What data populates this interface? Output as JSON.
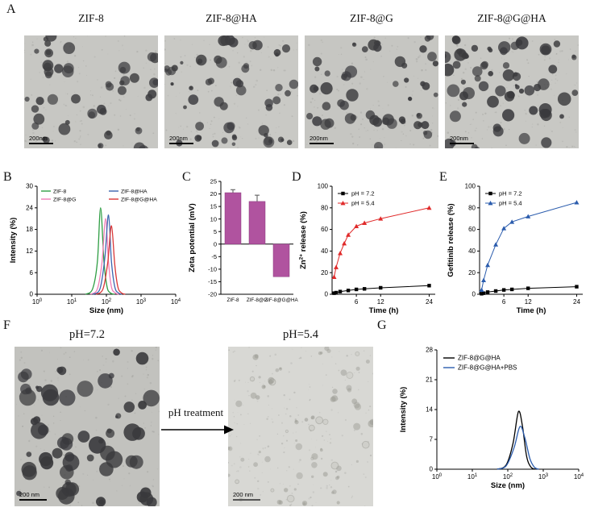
{
  "panels": {
    "A": {
      "label": "A",
      "images": [
        {
          "title": "ZIF-8",
          "scalebar": "200nm"
        },
        {
          "title": "ZIF-8@HA",
          "scalebar": "200nm"
        },
        {
          "title": "ZIF-8@G",
          "scalebar": "200nm"
        },
        {
          "title": "ZIF-8@G@HA",
          "scalebar": "200nm"
        }
      ]
    },
    "B": {
      "label": "B"
    },
    "C": {
      "label": "C"
    },
    "D": {
      "label": "D"
    },
    "E": {
      "label": "E"
    },
    "F": {
      "label": "F",
      "left_title": "pH=7.2",
      "right_title": "pH=5.4",
      "arrow_label": "pH treatment",
      "left_scalebar": "200 nm",
      "right_scalebar": "200 nm"
    },
    "G": {
      "label": "G"
    }
  },
  "chart_data": [
    {
      "id": "B",
      "type": "line",
      "xscale": "log",
      "title": "",
      "xlabel": "Size (nm)",
      "ylabel": "Intensity (%)",
      "xlim": [
        1,
        10000
      ],
      "ylim": [
        0,
        30
      ],
      "xticks": [
        1,
        10,
        100,
        1000,
        10000
      ],
      "yticks": [
        0,
        6,
        12,
        18,
        24,
        30
      ],
      "legend_position": "top-inside-two-columns",
      "series": [
        {
          "name": "ZIF-8",
          "color": "#2f9e44",
          "x": [
            25,
            40,
            55,
            68,
            85,
            105,
            130,
            170
          ],
          "y": [
            0,
            1.5,
            9,
            24,
            9,
            2,
            0.4,
            0
          ]
        },
        {
          "name": "ZIF-8@G",
          "color": "#ef7cb5",
          "x": [
            35,
            55,
            75,
            95,
            115,
            140,
            180,
            230
          ],
          "y": [
            0,
            1.5,
            9,
            21,
            9,
            2,
            0.4,
            0
          ]
        },
        {
          "name": "ZIF-8@HA",
          "color": "#3c64ae",
          "x": [
            40,
            65,
            90,
            115,
            140,
            175,
            220,
            280
          ],
          "y": [
            0,
            1.5,
            10,
            22,
            9,
            2,
            0.4,
            0
          ]
        },
        {
          "name": "ZIF-8@G@HA",
          "color": "#d93636",
          "x": [
            50,
            80,
            110,
            140,
            175,
            215,
            270,
            350
          ],
          "y": [
            0,
            1.5,
            9,
            19,
            8,
            2,
            0.4,
            0
          ]
        }
      ]
    },
    {
      "id": "C",
      "type": "bar",
      "ylabel": "Zeta potential (mV)",
      "ylim": [
        -20,
        25
      ],
      "yticks": [
        -20,
        -15,
        -10,
        -5,
        0,
        5,
        10,
        15,
        20,
        25
      ],
      "bar_color": "#b0539f",
      "categories": [
        "ZIF-8",
        "ZIF-8@G",
        "ZIF-8@G@HA"
      ],
      "values": [
        20.5,
        17,
        -13
      ],
      "errors": [
        1.2,
        2.5,
        0
      ]
    },
    {
      "id": "D",
      "type": "line",
      "xlabel": "Time (h)",
      "ylabel": "Zn2+ release (%)",
      "ylabel_parts": [
        [
          "Zn",
          false
        ],
        [
          "2+",
          true
        ],
        [
          " release (%)",
          false
        ]
      ],
      "xlim": [
        0,
        25.5
      ],
      "ylim": [
        0,
        100
      ],
      "xticks": [
        6,
        12,
        24
      ],
      "yticks": [
        0,
        20,
        40,
        60,
        80,
        100
      ],
      "legend_position": "top-left-inside",
      "series": [
        {
          "name": "pH = 7.2",
          "color": "#000000",
          "marker": "square",
          "x": [
            0.5,
            1,
            2,
            4,
            6,
            8,
            12,
            24
          ],
          "y": [
            1,
            1.5,
            2.5,
            3.5,
            4.5,
            5,
            6,
            8
          ]
        },
        {
          "name": "pH = 5.4",
          "color": "#e02a2a",
          "marker": "triangle",
          "x": [
            0.5,
            1,
            2,
            3,
            4,
            6,
            8,
            12,
            24
          ],
          "y": [
            16,
            25,
            38,
            47,
            55,
            63,
            66,
            70,
            80
          ]
        }
      ]
    },
    {
      "id": "E",
      "type": "line",
      "xlabel": "Time (h)",
      "ylabel": "Gefitinib release (%)",
      "xlim": [
        0,
        25.5
      ],
      "ylim": [
        0,
        100
      ],
      "xticks": [
        6,
        12,
        24
      ],
      "yticks": [
        0,
        20,
        40,
        60,
        80,
        100
      ],
      "legend_position": "top-left-inside",
      "series": [
        {
          "name": "pH = 7.2",
          "color": "#000000",
          "marker": "square",
          "x": [
            0.5,
            1,
            2,
            4,
            6,
            8,
            12,
            24
          ],
          "y": [
            0.5,
            1,
            2,
            3,
            4,
            4.5,
            5.5,
            7
          ]
        },
        {
          "name": "pH = 5.4",
          "color": "#2b5cad",
          "marker": "triangle",
          "x": [
            0.5,
            1,
            2,
            4,
            6,
            8,
            12,
            24
          ],
          "y": [
            4,
            13,
            27,
            46,
            61,
            67,
            72,
            85
          ]
        }
      ]
    },
    {
      "id": "G",
      "type": "line",
      "xscale": "log",
      "xlabel": "Size (nm)",
      "ylabel": "Intensity (%)",
      "xlim": [
        1,
        10000
      ],
      "ylim": [
        0,
        28
      ],
      "xticks": [
        1,
        10,
        100,
        1000,
        10000
      ],
      "yticks": [
        0,
        7,
        14,
        21,
        28
      ],
      "legend_position": "top-left-inside",
      "series": [
        {
          "name": "ZIF-8@G@HA",
          "color": "#000000",
          "x": [
            50,
            90,
            140,
            200,
            260,
            340,
            450,
            600
          ],
          "y": [
            0,
            1,
            6,
            13.5,
            10,
            3,
            0.5,
            0
          ]
        },
        {
          "name": "ZIF-8@G@HA+PBS",
          "color": "#2b5cad",
          "x": [
            50,
            90,
            150,
            220,
            300,
            420,
            560,
            750
          ],
          "y": [
            0,
            0.8,
            5,
            10,
            7.5,
            2.5,
            0.5,
            0
          ]
        }
      ]
    }
  ]
}
